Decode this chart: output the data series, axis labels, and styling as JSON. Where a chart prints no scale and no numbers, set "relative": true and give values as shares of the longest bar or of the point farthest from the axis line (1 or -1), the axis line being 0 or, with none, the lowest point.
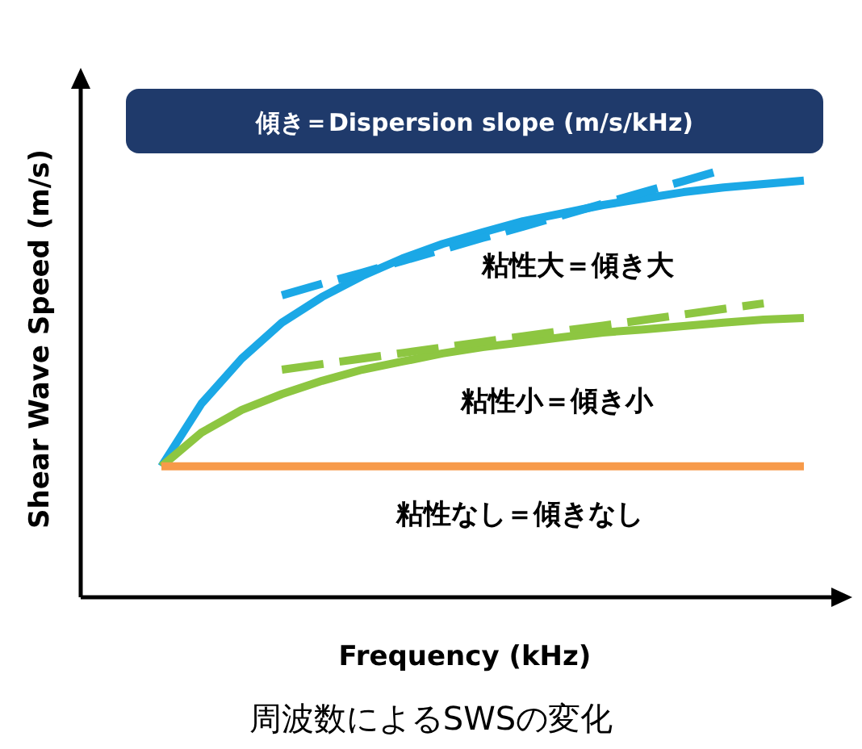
{
  "chart_data": {
    "type": "line",
    "relative": true,
    "title": "傾き＝Dispersion slope (m/s/kHz)",
    "xlabel": "Frequency (kHz)",
    "ylabel": "Shear Wave Speed (m/s)",
    "annotations": [
      "粘性大＝傾き大",
      "粘性小＝傾き小",
      "粘性なし＝傾きなし",
      "周波数によるSWSの変化"
    ],
    "categories": [
      null,
      null,
      null,
      null,
      null,
      null,
      null,
      null,
      null,
      null,
      null,
      null,
      null,
      null,
      null,
      null,
      null
    ],
    "series": [
      {
        "color": "#1ba8e6",
        "line_style": "solid",
        "values": [
          0.306,
          0.453,
          0.558,
          0.642,
          0.702,
          0.751,
          0.792,
          0.826,
          0.853,
          0.879,
          0.898,
          0.917,
          0.932,
          0.947,
          0.958,
          0.966,
          0.974
        ]
      },
      {
        "color": "#8dc641",
        "line_style": "solid",
        "values": [
          0.306,
          0.385,
          0.438,
          0.475,
          0.506,
          0.532,
          0.551,
          0.57,
          0.585,
          0.596,
          0.608,
          0.619,
          0.626,
          0.634,
          0.642,
          0.649,
          0.653
        ]
      },
      {
        "color": "#f79a4a",
        "line_style": "solid",
        "values": [
          0.306,
          0.306,
          0.306,
          0.306,
          0.306,
          0.306,
          0.306,
          0.306,
          0.306,
          0.306,
          0.306,
          0.306,
          0.306,
          0.306,
          0.306,
          0.306,
          0.306
        ]
      },
      {
        "type": "line",
        "color": "#1ba8e6",
        "line_style": "dashed",
        "values": [
          null,
          null,
          null,
          0.706,
          0.733,
          0.759,
          0.786,
          0.813,
          0.84,
          0.866,
          0.893,
          0.92,
          0.947,
          0.973,
          1,
          null,
          null
        ]
      },
      {
        "type": "line",
        "color": "#8dc641",
        "line_style": "dashed",
        "values": [
          null,
          null,
          null,
          0.532,
          0.545,
          0.558,
          0.571,
          0.584,
          0.597,
          0.61,
          0.623,
          0.635,
          0.648,
          0.661,
          0.674,
          0.687,
          null
        ]
      }
    ]
  }
}
